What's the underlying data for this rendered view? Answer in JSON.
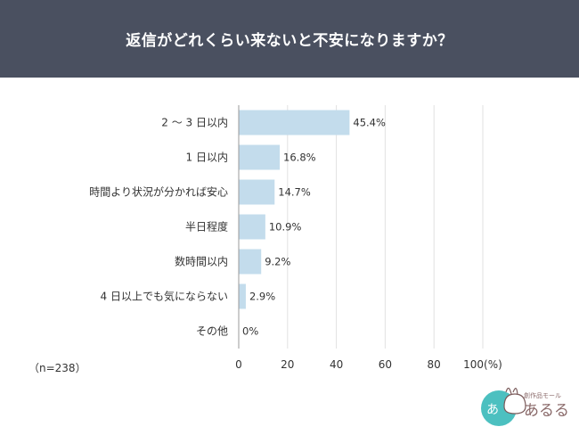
{
  "header": {
    "title": "返信がどれくらい来ないと不安になりますか？"
  },
  "note": "（n=238）",
  "logo": {
    "text": "創作品モール あるる"
  },
  "colors": {
    "header_bg": "#4a5060",
    "bar": "#c3dcec",
    "grid": "#e2e2e2",
    "axis": "#999999"
  },
  "chart_data": {
    "type": "bar",
    "orientation": "horizontal",
    "title": "返信がどれくらい来ないと不安になりますか？",
    "categories": [
      "2～3日以内",
      "1日以内",
      "時間より状況が分かれば安心",
      "半日程度",
      "数時間以内",
      "4日以上でも気にならない",
      "その他"
    ],
    "category_labels": [
      "2 ～ 3 日以内",
      "1 日以内",
      "時間より状況が分かれば安心",
      "半日程度",
      "数時間以内",
      "4 日以上でも気にならない",
      "その他"
    ],
    "values": [
      45.4,
      16.8,
      14.7,
      10.9,
      9.2,
      2.9,
      0
    ],
    "data_labels": [
      "45.4%",
      "16.8%",
      "14.7%",
      "10.9%",
      "9.2%",
      "2.9%",
      "0%"
    ],
    "xlim": [
      0,
      100
    ],
    "xticks": [
      0,
      20,
      40,
      60,
      80,
      100
    ],
    "xtick_labels": [
      "0",
      "20",
      "40",
      "60",
      "80",
      "100(%)"
    ],
    "grid": true,
    "xlabel": "",
    "ylabel": ""
  }
}
